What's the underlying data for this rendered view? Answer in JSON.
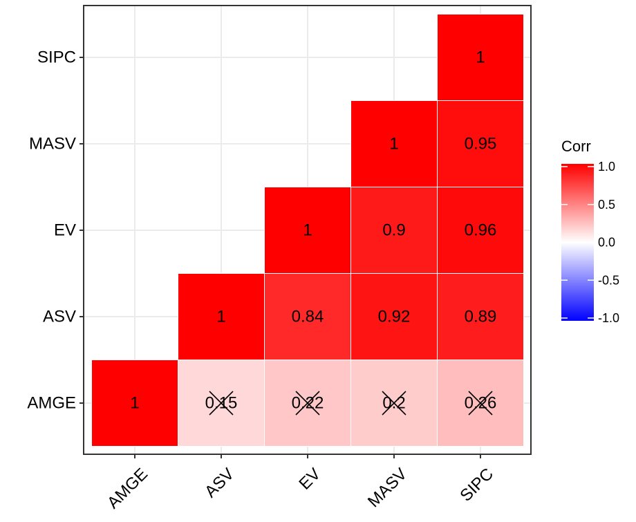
{
  "chart_data": {
    "type": "heatmap",
    "variables": [
      "AMGE",
      "ASV",
      "EV",
      "MASV",
      "SIPC"
    ],
    "values": [
      [
        "AMGE",
        "AMGE",
        1
      ],
      [
        "AMGE",
        "ASV",
        0.15
      ],
      [
        "AMGE",
        "EV",
        0.22
      ],
      [
        "AMGE",
        "MASV",
        0.2
      ],
      [
        "AMGE",
        "SIPC",
        0.26
      ],
      [
        "ASV",
        "ASV",
        1
      ],
      [
        "ASV",
        "EV",
        0.84
      ],
      [
        "ASV",
        "MASV",
        0.92
      ],
      [
        "ASV",
        "SIPC",
        0.89
      ],
      [
        "EV",
        "EV",
        1
      ],
      [
        "EV",
        "MASV",
        0.9
      ],
      [
        "EV",
        "SIPC",
        0.96
      ],
      [
        "MASV",
        "MASV",
        1
      ],
      [
        "MASV",
        "SIPC",
        0.95
      ],
      [
        "SIPC",
        "SIPC",
        1
      ]
    ],
    "cell_labels": [
      [
        "AMGE",
        "AMGE",
        "1"
      ],
      [
        "AMGE",
        "ASV",
        "0.15"
      ],
      [
        "AMGE",
        "EV",
        "0.22"
      ],
      [
        "AMGE",
        "MASV",
        "0.2"
      ],
      [
        "AMGE",
        "SIPC",
        "0.26"
      ],
      [
        "ASV",
        "ASV",
        "1"
      ],
      [
        "ASV",
        "EV",
        "0.84"
      ],
      [
        "ASV",
        "MASV",
        "0.92"
      ],
      [
        "ASV",
        "SIPC",
        "0.89"
      ],
      [
        "EV",
        "EV",
        "1"
      ],
      [
        "EV",
        "MASV",
        "0.9"
      ],
      [
        "EV",
        "SIPC",
        "0.96"
      ],
      [
        "MASV",
        "MASV",
        "1"
      ],
      [
        "MASV",
        "SIPC",
        "0.95"
      ],
      [
        "SIPC",
        "SIPC",
        "1"
      ]
    ],
    "crossed_out": [
      [
        "AMGE",
        "ASV"
      ],
      [
        "AMGE",
        "EV"
      ],
      [
        "AMGE",
        "MASV"
      ],
      [
        "AMGE",
        "SIPC"
      ]
    ],
    "layout": "upper triangle",
    "legend": {
      "title": "Corr",
      "position": "right",
      "limits": [
        -1,
        1
      ],
      "ticks": [
        "1.0",
        "0.5",
        "0.0",
        "-0.5",
        "-1.0"
      ],
      "tick_values": [
        1,
        0.5,
        0,
        -0.5,
        -1
      ]
    },
    "colors": {
      "low": "#0000ff",
      "mid": "#ffffff",
      "high": "#ff0000",
      "cell_border": "#ffffff",
      "grid": "#ebebeb",
      "panel_border": "#333333"
    },
    "grid": true,
    "x_tick_angle": 45,
    "xlabel": "",
    "ylabel": ""
  }
}
